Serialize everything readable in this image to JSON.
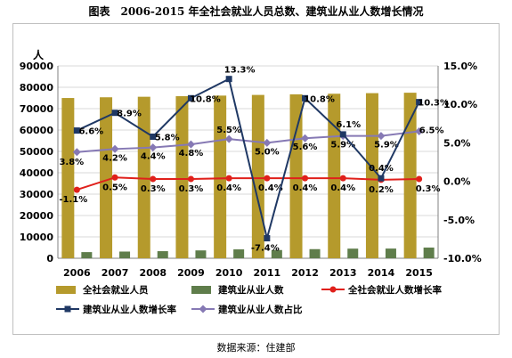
{
  "title": "图表　2006-2015 年全社会就业人员总数、建筑业从业人数增长情况",
  "source": "数据来源：住建部",
  "colors": {
    "total_bar": "#b59a2c",
    "construction_bar": "#5f7d4b",
    "total_growth_line": "#e0201b",
    "construction_growth_line": "#1f3864",
    "share_line": "#8679b4",
    "grid": "#d9d9d9"
  },
  "chart_data": {
    "type": "bar",
    "y_unit_label": "人",
    "categories": [
      "2006",
      "2007",
      "2008",
      "2009",
      "2010",
      "2011",
      "2012",
      "2013",
      "2014",
      "2015"
    ],
    "ylim": [
      0,
      90000
    ],
    "y_ticks": [
      "0",
      "10000",
      "20000",
      "30000",
      "40000",
      "50000",
      "60000",
      "70000",
      "80000",
      "90000"
    ],
    "y2lim": [
      -10.0,
      15.0
    ],
    "y2_ticks": [
      "-10.0%",
      "-5.0%",
      "0.0%",
      "5.0%",
      "10.0%",
      "15.0%"
    ],
    "grid": true,
    "legend_position": "bottom",
    "series": [
      {
        "name": "全社会就业人员",
        "kind": "bar",
        "axis": "left",
        "values": [
          74978,
          75321,
          75564,
          75828,
          76105,
          76420,
          76704,
          76977,
          77253,
          77451
        ]
      },
      {
        "name": "建筑业从业人数",
        "kind": "bar",
        "axis": "left",
        "values": [
          2878,
          3134,
          3315,
          3673,
          4160,
          3852,
          4268,
          4499,
          4534,
          5003
        ]
      },
      {
        "name": "全社会就业人数增长率",
        "kind": "line",
        "axis": "right",
        "values": [
          -1.1,
          0.5,
          0.3,
          0.3,
          0.4,
          0.4,
          0.4,
          0.4,
          0.2,
          0.3
        ],
        "labels": [
          "-1.1%",
          "0.5%",
          "0.3%",
          "0.3%",
          "0.4%",
          "0.4%",
          "0.4%",
          "0.4%",
          "0.2%",
          "0.3%"
        ]
      },
      {
        "name": "建筑业从业人数增长率",
        "kind": "line",
        "axis": "right",
        "values": [
          6.6,
          8.9,
          5.8,
          10.8,
          13.3,
          -7.4,
          10.8,
          6.1,
          0.4,
          10.3
        ],
        "labels": [
          "6.6%",
          "8.9%",
          "5.8%",
          "10.8%",
          "13.3%",
          "-7.4%",
          "10.8%",
          "6.1%",
          "0.4%",
          "10.3%"
        ]
      },
      {
        "name": "建筑业从业人数占比",
        "kind": "line",
        "axis": "right",
        "values": [
          3.8,
          4.2,
          4.4,
          4.8,
          5.5,
          5.0,
          5.6,
          5.9,
          5.9,
          6.5
        ],
        "labels": [
          "3.8%",
          "4.2%",
          "4.4%",
          "4.8%",
          "5.5%",
          "5.0%",
          "5.6%",
          "5.9%",
          "5.9%",
          "6.5%"
        ]
      }
    ]
  }
}
